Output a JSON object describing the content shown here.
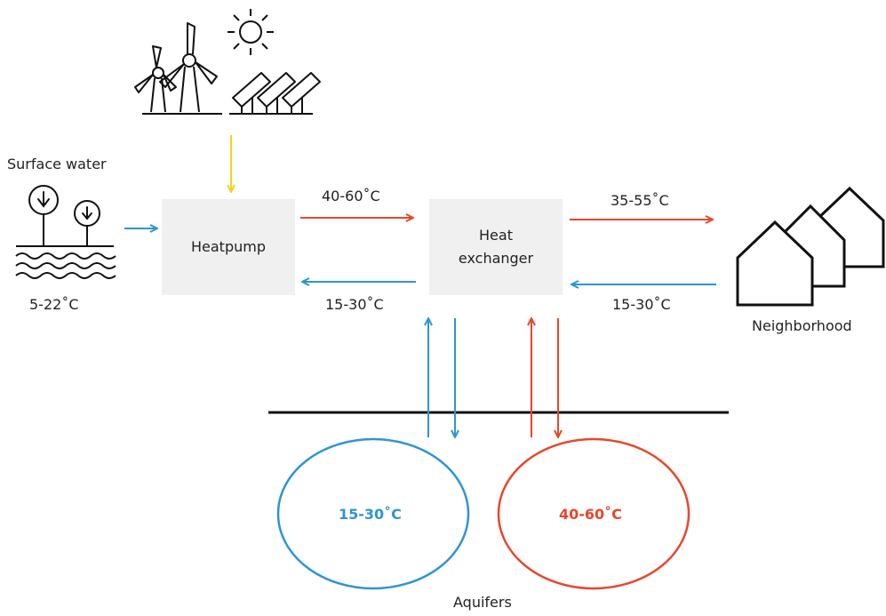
{
  "labels": {
    "surface_water": "Surface water",
    "surface_temp": "5-22˚C",
    "heatpump": "Heatpump",
    "heat_exchanger_line1": "Heat",
    "heat_exchanger_line2": "exchanger",
    "hp_to_hx_temp": "40-60˚C",
    "hx_to_hp_temp": "15-30˚C",
    "hx_to_nb_temp": "35-55˚C",
    "nb_to_hx_temp": "15-30˚C",
    "neighborhood": "Neighborhood",
    "cold_aquifer_temp": "15-30˚C",
    "warm_aquifer_temp": "40-60˚C",
    "aquifers": "Aquifers"
  },
  "colors": {
    "cold": "#2e95d3",
    "warm": "#e8472a",
    "renewable": "#f2d31b",
    "line": "#111111",
    "box": "#f0f0f0"
  },
  "icons": [
    "sun-icon",
    "wind-turbine-icon",
    "solar-panel-icon",
    "tree-icon",
    "water-waves-icon",
    "houses-icon"
  ]
}
